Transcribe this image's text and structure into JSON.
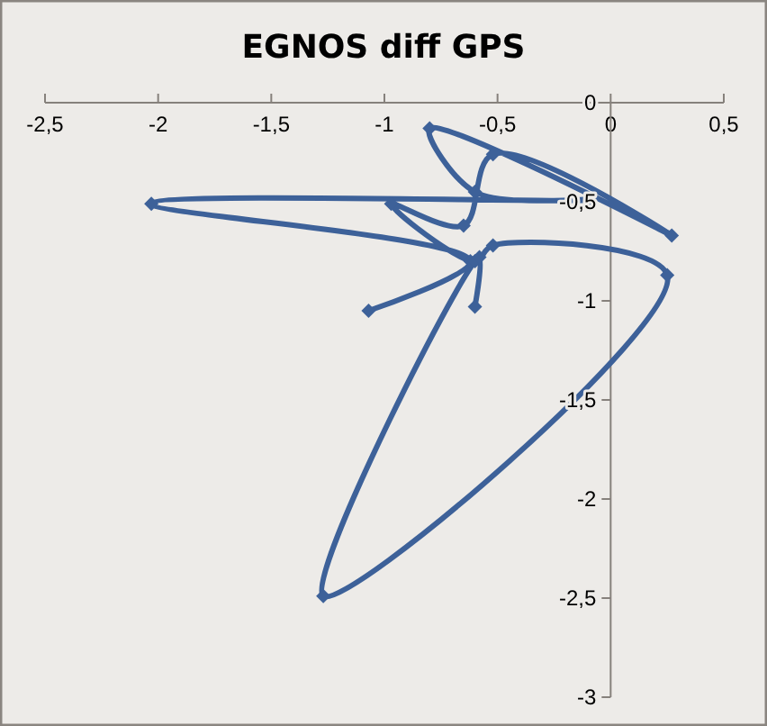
{
  "chart_data": {
    "type": "line",
    "title": "EGNOS diff GPS",
    "xlim": [
      -2.5,
      0.5
    ],
    "xticks": [
      {
        "value": -2.5,
        "label": "-2,5"
      },
      -2,
      {
        "value": -1.5,
        "label": "-1,5"
      },
      -1,
      {
        "value": -0.5,
        "label": "-0,5"
      },
      0,
      {
        "value": 0.5,
        "label": "0,5"
      }
    ],
    "ylim": [
      -3,
      0
    ],
    "yticks": [
      {
        "value": -3,
        "label": "-3"
      },
      {
        "value": -2.5,
        "label": "-2,5"
      },
      -2,
      {
        "value": -1.5,
        "label": "-1,5"
      },
      -1,
      {
        "value": -0.5,
        "label": "-0,5"
      },
      0
    ],
    "series": [
      {
        "color": "#3d6199",
        "x": [
          -1.07,
          -0.62,
          -2.03,
          -0.1,
          -0.6,
          -0.8,
          0.27,
          -0.52,
          -0.65,
          -0.97,
          -0.6,
          -0.52,
          0.25,
          -1.27,
          -0.58,
          -0.6
        ],
        "values": [
          -1.05,
          -0.8,
          -0.51,
          -0.49,
          -0.45,
          -0.13,
          -0.67,
          -0.26,
          -0.62,
          -0.51,
          -0.8,
          -0.72,
          -0.87,
          -2.49,
          -0.78,
          -1.03
        ]
      }
    ],
    "marker": "diamond",
    "line_style": "solid",
    "grid": false
  }
}
